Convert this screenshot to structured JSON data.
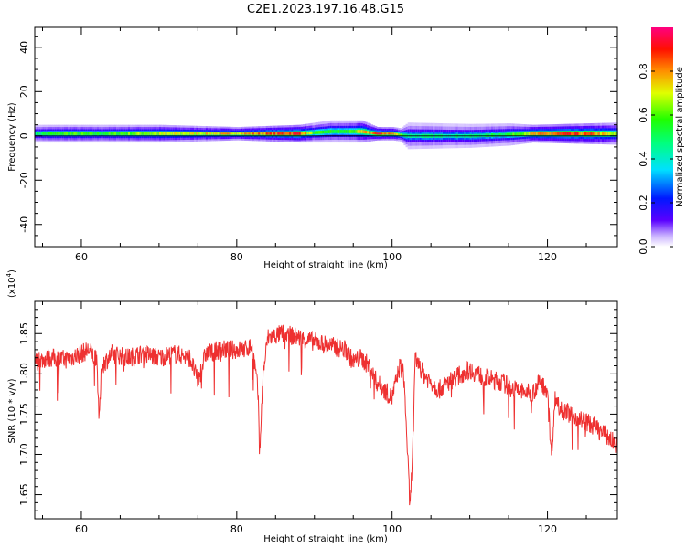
{
  "title": "C2E1.2023.197.16.48.G15",
  "colors": {
    "snr_line": "#ee3030",
    "spectral_band_core": "#1aee1a",
    "spectral_band_edge": "#6010ff"
  },
  "chart_data": [
    {
      "type": "heatmap",
      "name": "spectrogram",
      "xlabel": "Height of straight line (km)",
      "ylabel": "Frequency (Hz)",
      "xlim": [
        54,
        129
      ],
      "ylim": [
        -50,
        49
      ],
      "x_ticks": [
        60,
        80,
        100,
        120
      ],
      "x_tick_labels": [
        "60",
        "80",
        "100",
        "120"
      ],
      "y_ticks": [
        40,
        20,
        0,
        -20,
        -40
      ],
      "y_tick_labels": [
        "40",
        "20",
        "0",
        "-20",
        "-40"
      ],
      "grid": false,
      "colorbar": {
        "label": "Normalized spectral amplitude",
        "colormap": "rainbow",
        "range": [
          0,
          1
        ],
        "ticks": [
          0.0,
          0.2,
          0.4,
          0.6,
          0.8
        ],
        "tick_labels": [
          "0.0",
          "0.2",
          "0.4",
          "0.6",
          "0.8"
        ]
      },
      "band": {
        "center_hz": [
          [
            54,
            1
          ],
          [
            60,
            1
          ],
          [
            70,
            1
          ],
          [
            80,
            1
          ],
          [
            88,
            1
          ],
          [
            92,
            2
          ],
          [
            96,
            2
          ],
          [
            98,
            1
          ],
          [
            100,
            1
          ],
          [
            102,
            0
          ],
          [
            110,
            0
          ],
          [
            118,
            1
          ],
          [
            125,
            1
          ],
          [
            129,
            1
          ]
        ],
        "halfwidth_hz": [
          [
            54,
            4
          ],
          [
            70,
            4
          ],
          [
            80,
            3
          ],
          [
            88,
            4
          ],
          [
            92,
            5
          ],
          [
            96,
            5
          ],
          [
            98,
            3
          ],
          [
            101,
            3
          ],
          [
            102,
            6
          ],
          [
            115,
            5
          ],
          [
            118,
            4
          ],
          [
            129,
            5
          ]
        ],
        "peak_amplitude": [
          [
            54,
            0.5
          ],
          [
            58,
            0.6
          ],
          [
            62,
            0.55
          ],
          [
            68,
            0.65
          ],
          [
            74,
            0.7
          ],
          [
            78,
            0.75
          ],
          [
            82,
            0.8
          ],
          [
            85,
            0.85
          ],
          [
            88,
            0.9
          ],
          [
            90,
            0.55
          ],
          [
            94,
            0.55
          ],
          [
            96,
            0.7
          ],
          [
            98,
            0.9
          ],
          [
            100,
            0.8
          ],
          [
            101,
            0.6
          ],
          [
            102,
            0.45
          ],
          [
            110,
            0.45
          ],
          [
            115,
            0.55
          ],
          [
            118,
            0.75
          ],
          [
            122,
            0.85
          ],
          [
            126,
            0.8
          ],
          [
            129,
            0.6
          ]
        ]
      }
    },
    {
      "type": "line",
      "name": "snr",
      "xlabel": "Height of straight line (km)",
      "ylabel": "SNR (10 * v/v)",
      "y_multiplier_label": "(x10^4)",
      "xlim": [
        54,
        129
      ],
      "ylim": [
        1.62,
        1.89
      ],
      "x_ticks": [
        60,
        80,
        100,
        120
      ],
      "x_tick_labels": [
        "60",
        "80",
        "100",
        "120"
      ],
      "y_ticks": [
        1.85,
        1.8,
        1.75,
        1.7,
        1.65
      ],
      "y_tick_labels": [
        "1.85",
        "1.80",
        "1.75",
        "1.70",
        "1.65"
      ],
      "grid": false,
      "series": [
        {
          "color": "#ee3030",
          "x": [
            54,
            56,
            58,
            60,
            61,
            62,
            62.3,
            62.6,
            64,
            66,
            68,
            70,
            72,
            74,
            75,
            76,
            78,
            80,
            81,
            82,
            82.7,
            83,
            83.4,
            84,
            86,
            88,
            90,
            92,
            94,
            95,
            96,
            97,
            98,
            99,
            100,
            101,
            101.5,
            102,
            102.3,
            102.7,
            103,
            104,
            105,
            106,
            108,
            110,
            112,
            114,
            116,
            118,
            119,
            120,
            120.5,
            121,
            122,
            124,
            126,
            128,
            129
          ],
          "y": [
            1.815,
            1.82,
            1.818,
            1.825,
            1.83,
            1.815,
            1.74,
            1.81,
            1.825,
            1.82,
            1.825,
            1.82,
            1.825,
            1.82,
            1.79,
            1.825,
            1.83,
            1.83,
            1.83,
            1.835,
            1.78,
            1.71,
            1.8,
            1.845,
            1.85,
            1.845,
            1.84,
            1.835,
            1.83,
            1.815,
            1.82,
            1.81,
            1.79,
            1.78,
            1.77,
            1.81,
            1.8,
            1.7,
            1.63,
            1.72,
            1.82,
            1.8,
            1.79,
            1.78,
            1.795,
            1.805,
            1.795,
            1.79,
            1.78,
            1.775,
            1.79,
            1.78,
            1.7,
            1.77,
            1.755,
            1.745,
            1.735,
            1.72,
            1.71
          ],
          "noise_amplitude": 0.012
        }
      ]
    }
  ]
}
